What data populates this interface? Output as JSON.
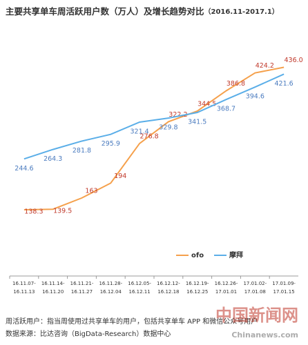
{
  "chart_data": {
    "type": "line",
    "title": "主要共享单车周活跃用户数（万人）及增长趋势对比",
    "subtitle": "（2016.11-2017.1）",
    "categories": [
      [
        "16.11.07-",
        "16.11.13"
      ],
      [
        "16.11.14-",
        "16.11.20"
      ],
      [
        "16.11.21-",
        "16.11.27"
      ],
      [
        "16.11.28-",
        "16.12.04"
      ],
      [
        "16.12.05-",
        "16.12.11"
      ],
      [
        "16.12.12-",
        "16.12.18"
      ],
      [
        "16.12.19-",
        "16.12.25"
      ],
      [
        "16.12.26-",
        "17.01.01"
      ],
      [
        "17.01.02-",
        "17.01.08"
      ],
      [
        "17.01.09-",
        "17.01.15"
      ]
    ],
    "series": [
      {
        "name": "ofo",
        "color": "#f5a04b",
        "label_color": "#c0392b",
        "values": [
          138.3,
          139.5,
          163,
          194,
          276.8,
          322.2,
          344.5,
          386.8,
          424.2,
          436.0
        ],
        "value_labels": [
          "138.3",
          "139.5",
          "163",
          "194",
          "276.8",
          "322.2",
          "344.5",
          "386.8",
          "424.2",
          "436.0"
        ]
      },
      {
        "name": "摩拜",
        "color": "#5aaee8",
        "label_color": "#4a7bbf",
        "values": [
          244.6,
          264.3,
          281.8,
          295.9,
          321.4,
          329.8,
          341.5,
          368.7,
          394.6,
          421.6
        ],
        "value_labels": [
          "244.6",
          "264.3",
          "281.8",
          "295.9",
          "321.4",
          "329.8",
          "341.5",
          "368.7",
          "394.6",
          "421.6"
        ]
      }
    ],
    "ylim": [
      0,
      490
    ],
    "grid": false,
    "notes": [
      "周活跃用户：指当周使用过共享单车的用户，包括共享单车 APP 和微信公众号用户",
      "数据来源：比达咨询（BigData-Research）数据中心"
    ],
    "watermark": [
      "中国新闻网",
      "Chinanews.com"
    ]
  }
}
